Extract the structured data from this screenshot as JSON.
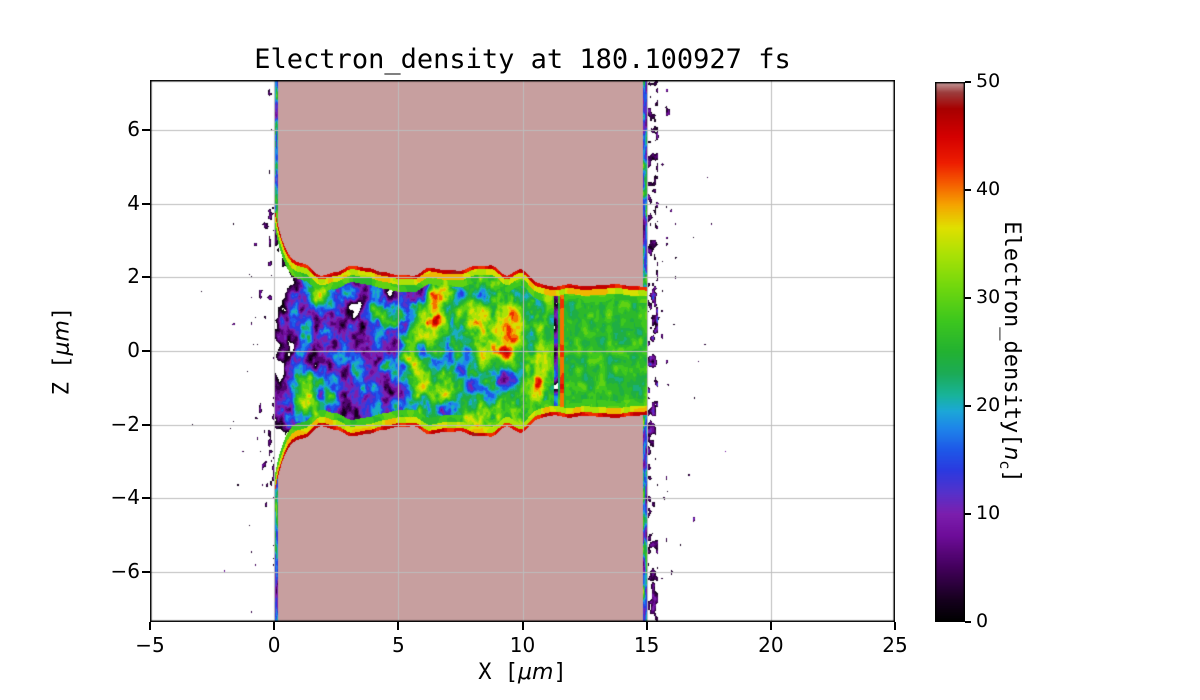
{
  "figure": {
    "title": "Electron_density at 180.100927 fs",
    "xlabel": {
      "pre": "X [",
      "math": "μm",
      "post": "]"
    },
    "ylabel": {
      "pre": "Z [",
      "math": "μm",
      "post": "]"
    },
    "xlim": [
      -5,
      25
    ],
    "zlim": [
      -7.37,
      7.37
    ],
    "x_ticks": {
      "values": [
        -5,
        0,
        5,
        10,
        15,
        20,
        25
      ],
      "labels": [
        "−5",
        "0",
        "5",
        "10",
        "15",
        "20",
        "25"
      ]
    },
    "z_ticks": {
      "values": [
        -6,
        -4,
        -2,
        0,
        2,
        4,
        6
      ],
      "labels": [
        "−6",
        "−4",
        "−2",
        "0",
        "2",
        "4",
        "6"
      ]
    },
    "grid": true
  },
  "colorbar": {
    "label": {
      "pre": "Electron_density[",
      "var": "n",
      "sub": "c",
      "post": "]"
    },
    "vmin": 0,
    "vmax": 50,
    "ticks": {
      "values": [
        0,
        10,
        20,
        30,
        40,
        50
      ],
      "labels": [
        "0",
        "10",
        "20",
        "30",
        "40",
        "50"
      ]
    }
  },
  "chart_data": {
    "type": "heatmap",
    "title": "Electron_density at 180.100927 fs",
    "time_fs": 180.100927,
    "xlabel": "X [μm]",
    "ylabel": "Z [μm]",
    "xlim": [
      -5,
      25
    ],
    "ylim": [
      -7.37,
      7.37
    ],
    "value_label": "Electron_density[n_c]",
    "value_range": [
      0,
      50
    ],
    "grid": true,
    "legend": "colorbar-right",
    "colormap_stops": [
      {
        "v": 0,
        "c": "#000000"
      },
      {
        "v": 2,
        "c": "#16001e"
      },
      {
        "v": 5,
        "c": "#43005c"
      },
      {
        "v": 8,
        "c": "#6e0d9a"
      },
      {
        "v": 10,
        "c": "#7c1fae"
      },
      {
        "v": 12,
        "c": "#5532cc"
      },
      {
        "v": 14,
        "c": "#2b3ae0"
      },
      {
        "v": 16,
        "c": "#1e5ae8"
      },
      {
        "v": 18,
        "c": "#1e87ea"
      },
      {
        "v": 19.5,
        "c": "#1ca8d8"
      },
      {
        "v": 21,
        "c": "#18b49a"
      },
      {
        "v": 23,
        "c": "#1cab57"
      },
      {
        "v": 25,
        "c": "#23b232"
      },
      {
        "v": 28,
        "c": "#3fc81e"
      },
      {
        "v": 31,
        "c": "#71d80e"
      },
      {
        "v": 34,
        "c": "#abe206"
      },
      {
        "v": 36.5,
        "c": "#e0e000"
      },
      {
        "v": 38.5,
        "c": "#f5a800"
      },
      {
        "v": 40.5,
        "c": "#f66000"
      },
      {
        "v": 42.5,
        "c": "#ee1e00"
      },
      {
        "v": 45,
        "c": "#d40000"
      },
      {
        "v": 47.5,
        "c": "#a80000"
      },
      {
        "v": 49,
        "c": "#9c3c3c"
      },
      {
        "v": 50,
        "c": "#c79f9f"
      }
    ],
    "features": {
      "target_slab": {
        "x_range": [
          0,
          15
        ],
        "z_range": [
          -7.37,
          7.37
        ],
        "density_nc": 50
      },
      "bored_channel": {
        "x_range": [
          0,
          15
        ],
        "half_width_um": 2.1,
        "mouth_half_width_um": 3.9,
        "exit_half_width_um": 1.78,
        "density_range_nc": [
          0,
          50
        ]
      },
      "vacuum_electrons": {
        "left_of_target": true,
        "right_of_target": true,
        "speckle_density_nc": [
          1,
          14
        ]
      }
    },
    "procedural": {
      "seed": 7,
      "quantize_step": 2,
      "white_below": 0.5,
      "slab": {
        "x0": 0,
        "x1": 15,
        "value": 50
      },
      "channel": {
        "base_hw": 2.12,
        "exit_hw": 1.78,
        "exit_blend_x": [
          9.5,
          11.5
        ],
        "mouth_extra": 1.75,
        "mouth_decay": 0.45,
        "wiggle_amp": 0.22,
        "wiggle_freq": 1.6,
        "rim_red_w": 0.1,
        "rim_yellow_w": 0.26,
        "rim_green_w": 0.45,
        "mean_left": 15,
        "mean_right": 26,
        "mean_blend_x": [
          3,
          8
        ],
        "amp1": 46,
        "freq1": 1.05,
        "amp2": 22,
        "freq2": 2.6,
        "left_amp": 26,
        "left_freq": 1.7,
        "right_amp": 12,
        "right_freq": 4.0,
        "right_mix_x": [
          10.5,
          12
        ],
        "mouth_suppress_x": 1.2,
        "mouth_suppress": 18,
        "gap_x": [
          11.25,
          11.42
        ],
        "gap_drop": 20,
        "line_x": [
          11.5,
          11.66
        ],
        "line_v": 39
      },
      "edges": {
        "left_line": [
          -0.12,
          0.16
        ],
        "right_line": [
          14.84,
          15.02
        ],
        "column1": [
          15.05,
          15.45
        ],
        "column1_p": 0.7,
        "column2": [
          15.45,
          15.95
        ],
        "column2_p": 0.3
      },
      "vacuum": {
        "left_p": 0.3,
        "left_decay": 1.6,
        "right_p": 0.34,
        "right_decay": 2.6,
        "mouth_p": 0.28,
        "mouth_decay": 1.1,
        "mouth_z": 2.6,
        "mouth_zs": 3.0,
        "scale": 5.5,
        "scale2": 11,
        "thr_gain": 0.62,
        "v_lo": 1.5,
        "v_span": 12
      }
    }
  }
}
